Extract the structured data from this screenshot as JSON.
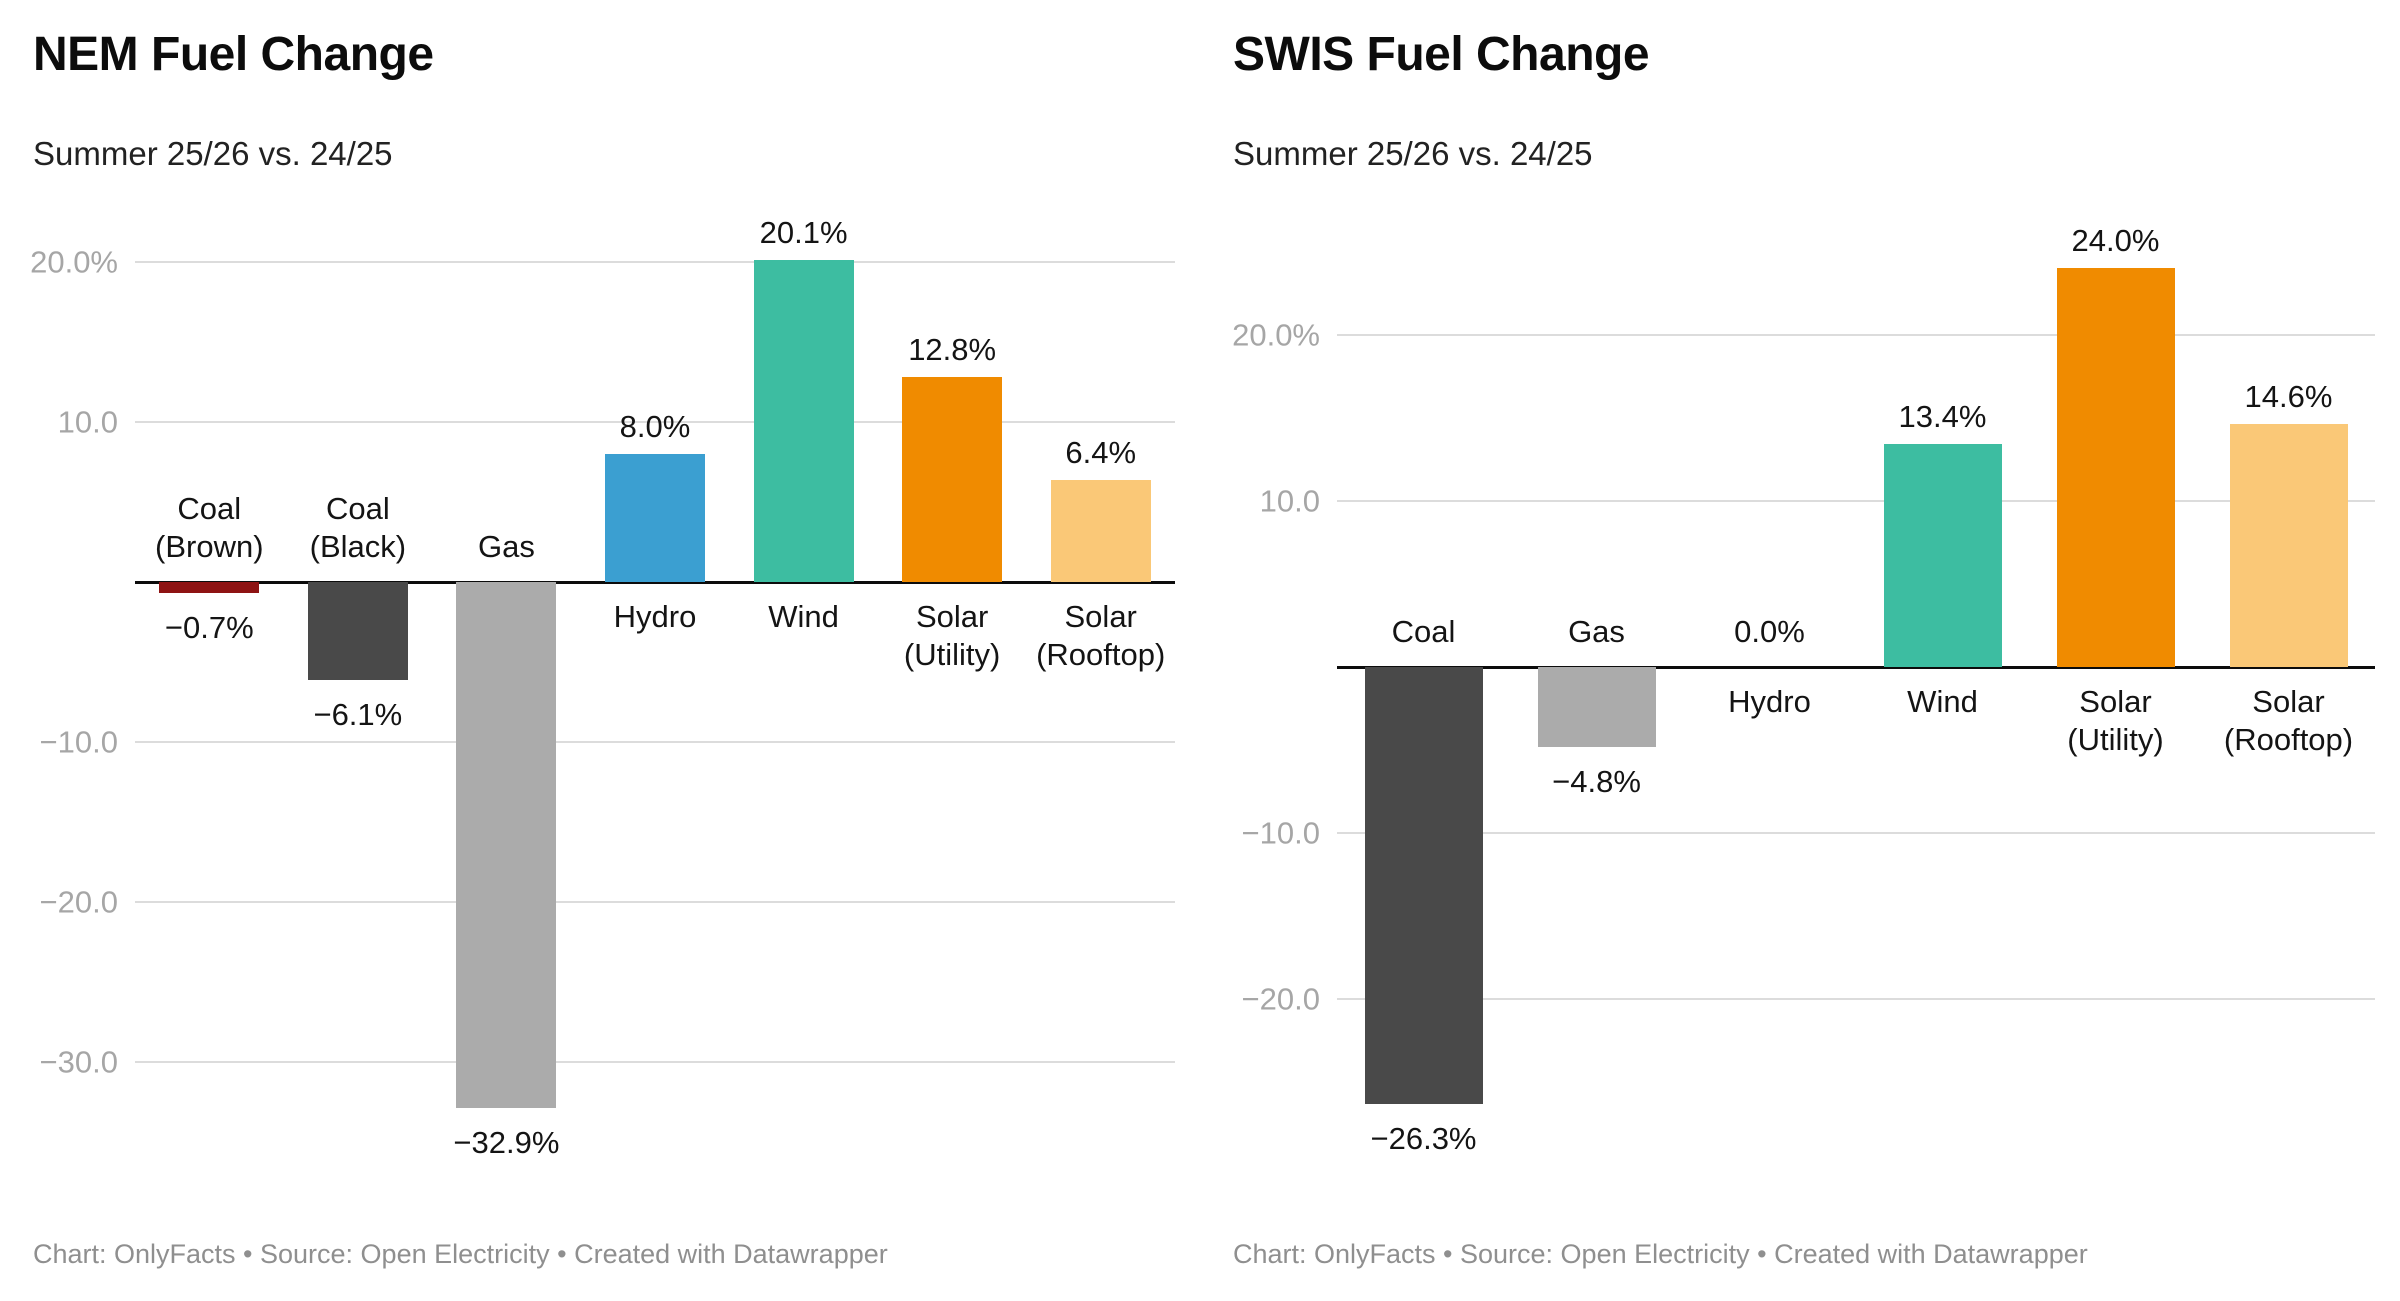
{
  "chart_data": [
    {
      "type": "bar",
      "title": "NEM Fuel Change",
      "subtitle": "Summer 25/26 vs. 24/25",
      "footer": "Chart: OnlyFacts • Source: Open Electricity • Created with Datawrapper",
      "categories": [
        "Coal\n(Brown)",
        "Coal\n(Black)",
        "Gas",
        "Hydro",
        "Wind",
        "Solar\n(Utility)",
        "Solar\n(Rooftop)"
      ],
      "values": [
        -0.7,
        -6.1,
        -32.9,
        8.0,
        20.1,
        12.8,
        6.4
      ],
      "value_labels": [
        "−0.7%",
        "−6.1%",
        "−32.9%",
        "8.0%",
        "20.1%",
        "12.8%",
        "6.4%"
      ],
      "bar_colors": [
        "#8e1313",
        "#494949",
        "#ababab",
        "#3b9fd1",
        "#3dbda1",
        "#f08b00",
        "#fac877"
      ],
      "yticks": [
        {
          "value": 20,
          "label": "20.0%"
        },
        {
          "value": 10,
          "label": "10.0"
        },
        {
          "value": -10,
          "label": "−10.0"
        },
        {
          "value": -20,
          "label": "−20.0"
        },
        {
          "value": -30,
          "label": "−30.0"
        }
      ],
      "ylim": [
        -38,
        22
      ],
      "grid": true,
      "legend": "none",
      "xlabel": "",
      "ylabel": ""
    },
    {
      "type": "bar",
      "title": "SWIS Fuel Change",
      "subtitle": "Summer 25/26 vs. 24/25",
      "footer": "Chart: OnlyFacts • Source: Open Electricity • Created with Datawrapper",
      "categories": [
        "Coal",
        "Gas",
        "Hydro",
        "Wind",
        "Solar\n(Utility)",
        "Solar\n(Rooftop)"
      ],
      "values": [
        -26.3,
        -4.8,
        0.0,
        13.4,
        24.0,
        14.6
      ],
      "value_labels": [
        "−26.3%",
        "−4.8%",
        "0.0%",
        "13.4%",
        "24.0%",
        "14.6%"
      ],
      "bar_colors": [
        "#494949",
        "#ababab",
        "#3b9fd1",
        "#3dbda1",
        "#f08b00",
        "#fac877"
      ],
      "yticks": [
        {
          "value": 20,
          "label": "20.0%"
        },
        {
          "value": 10,
          "label": "10.0"
        },
        {
          "value": -10,
          "label": "−10.0"
        },
        {
          "value": -20,
          "label": "−20.0"
        }
      ],
      "ylim": [
        -31.5,
        26.3
      ],
      "grid": true,
      "legend": "none",
      "xlabel": "",
      "ylabel": ""
    }
  ]
}
